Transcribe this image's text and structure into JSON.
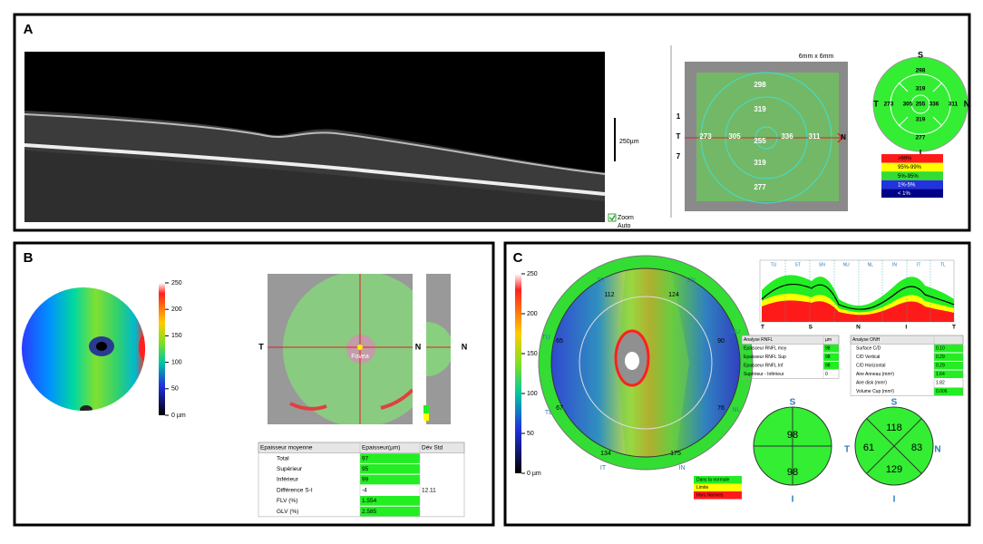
{
  "panel_a": {
    "label": "A",
    "oct_scale": "250µm",
    "zoom": "Zoom",
    "auto": "Auto",
    "scan_size": "6mm x 6mm",
    "fundus": {
      "orientation": [
        "1",
        "T",
        "7",
        "N"
      ],
      "values": [
        298,
        319,
        273,
        305,
        255,
        336,
        311,
        319,
        277
      ]
    },
    "thickness_map": {
      "directions": [
        "S",
        "T",
        "N",
        "I"
      ],
      "values": [
        298,
        319,
        273,
        305,
        255,
        336,
        311,
        319,
        277
      ]
    },
    "legend": [
      {
        "label": ">99%",
        "color": "#ff1a1a"
      },
      {
        "label": "95%-99%",
        "color": "#ffff00"
      },
      {
        "label": "5%-95%",
        "color": "#33dd33"
      },
      {
        "label": "1%-5%",
        "color": "#2233dd"
      },
      {
        "label": "< 1%",
        "color": "#000088"
      }
    ]
  },
  "panel_b": {
    "label": "B",
    "colorbar_ticks": [
      "250",
      "200",
      "150",
      "100",
      "50",
      "0 µm"
    ],
    "fundus_labels": [
      "T",
      "N",
      "Fovea"
    ],
    "side_label": "N",
    "table": {
      "header": [
        "Epaisseur moyenne",
        "Epaisseur(µm)",
        "Dév Std"
      ],
      "rows": [
        {
          "cells": [
            "Total",
            97
          ],
          "color": "#22ee22"
        },
        {
          "cells": [
            "Supérieur",
            95
          ],
          "color": "#22ee22"
        },
        {
          "cells": [
            "Inférieur",
            99
          ],
          "color": "#22ee22"
        },
        {
          "cells": [
            "Différence S-I",
            -4,
            12.11
          ]
        },
        {
          "cells": [
            "FLV (%)",
            1.554
          ],
          "color": "#22ee22"
        },
        {
          "cells": [
            "GLV (%)",
            2.585
          ],
          "color": "#22ee22"
        }
      ]
    }
  },
  "panel_c": {
    "label": "C",
    "colorbar_ticks": [
      "250",
      "200",
      "150",
      "100",
      "50",
      "0 µm"
    ],
    "sectors": [
      {
        "name": "ST",
        "value": 112
      },
      {
        "name": "SN",
        "value": 124
      },
      {
        "name": "NU",
        "value": 90
      },
      {
        "name": "NL",
        "value": 76
      },
      {
        "name": "IN",
        "value": 175
      },
      {
        "name": "IT",
        "value": 134
      },
      {
        "name": "TL",
        "value": 67
      },
      {
        "name": "TU",
        "value": 65
      }
    ],
    "legend": [
      {
        "label": "Dans la normale",
        "color": "#22ee22"
      },
      {
        "label": "Limite",
        "color": "#ffff00"
      },
      {
        "label": "Hors Normes",
        "color": "#ff1a1a"
      }
    ],
    "profile": {
      "top_labels": [
        "TU",
        "ST",
        "SN",
        "NU",
        "NL",
        "IN",
        "IT",
        "TL"
      ],
      "bottom_labels": [
        "T",
        "S",
        "N",
        "I",
        "T"
      ]
    },
    "rnfl_table": {
      "header": [
        "Analyse RNFL",
        "µm"
      ],
      "rows": [
        {
          "cells": [
            "Epaisseur RNFL moy",
            98
          ],
          "color": "#22ee22"
        },
        {
          "cells": [
            "Epaisseur RNFL Sup",
            98
          ],
          "color": "#22ee22"
        },
        {
          "cells": [
            "Epaisseur RNFL Inf",
            98
          ],
          "color": "#22ee22"
        },
        {
          "cells": [
            "Supérieur - Inférieur",
            0
          ]
        }
      ]
    },
    "onh_table": {
      "header": [
        "Analyse ONH"
      ],
      "rows": [
        {
          "cells": [
            "Surface C/D",
            "0.10"
          ],
          "color": "#22ee22"
        },
        {
          "cells": [
            "C/D Vertical",
            0.29
          ],
          "color": "#22ee22"
        },
        {
          "cells": [
            "C/D Horizontal",
            0.29
          ],
          "color": "#22ee22"
        },
        {
          "cells": [
            "Aire Anneau (mm²)",
            1.64
          ],
          "color": "#22ee22"
        },
        {
          "cells": [
            "Aire disk (mm²)",
            1.82
          ]
        },
        {
          "cells": [
            "Volume Cup (mm³)",
            0.006
          ],
          "color": "#22ee22"
        }
      ]
    },
    "hemispheres": {
      "directions": [
        "S",
        "I"
      ],
      "values": [
        98,
        98
      ]
    },
    "quadrants": {
      "directions": [
        "S",
        "T",
        "N",
        "I"
      ],
      "values": [
        118,
        61,
        83,
        129
      ]
    }
  }
}
